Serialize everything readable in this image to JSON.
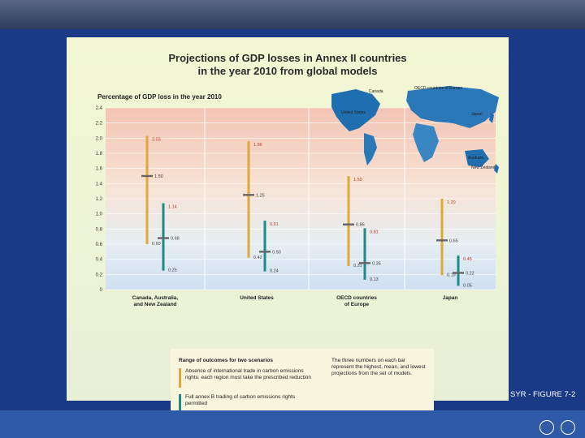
{
  "title_lines": [
    "Projections of GDP losses in Annex II countries",
    "in the year 2010 from global models"
  ],
  "footer": {
    "figure_label": "SYR - FIGURE 7-2"
  },
  "colors": {
    "scenario_no_trade": "#e0a83a",
    "scenario_full_trade": "#1d8a8a",
    "mean_marker": "#666666",
    "slide_bg": "#1a3a86"
  },
  "legend": {
    "title": "Range of outcomes for two scenarios",
    "item1": "Absence of international trade in carbon emissions rights: each region must take the prescribed reduction",
    "item2": "Full annex B trading of carbon emissions rights permitted",
    "note": "The three numbers on each bar represent the highest, mean, and lowest projections from the set of models."
  },
  "map_labels": [
    "Canada",
    "OECD countries of Europe",
    "United States",
    "Japan",
    "Australia",
    "New Zealand"
  ],
  "chart_data": {
    "type": "bar",
    "ylabel": "Percentage of GDP loss in the year 2010",
    "ylim": [
      0,
      2.4
    ],
    "yticks": [
      "2.4",
      "2.2",
      "2.0",
      "1.8",
      "1.6",
      "1.4",
      "1.2",
      "1.0",
      "0.8",
      "0.6",
      "0.4",
      "0.2",
      "0"
    ],
    "categories": [
      "Canada, Australia, and New Zealand",
      "United States",
      "OECD countries of Europe",
      "Japan"
    ],
    "series": [
      {
        "name": "Absence of international trade in carbon emissions rights: each region must take the prescribed reduction",
        "high": [
          2.03,
          1.96,
          1.5,
          1.2
        ],
        "mean": [
          1.5,
          1.25,
          0.86,
          0.65
        ],
        "low": [
          0.6,
          0.42,
          0.31,
          0.19
        ],
        "high_labels": [
          "2.03",
          "1.96",
          "1.50",
          "1.20"
        ],
        "mean_labels": [
          "1.50",
          "1.25",
          "0.86",
          "0.65"
        ],
        "low_labels": [
          "0.60",
          "0.42",
          "0.31",
          "0.19"
        ]
      },
      {
        "name": "Full annex B trading of carbon emissions rights permitted",
        "high": [
          1.14,
          0.91,
          0.81,
          0.45
        ],
        "mean": [
          0.68,
          0.5,
          0.35,
          0.22
        ],
        "low": [
          0.25,
          0.24,
          0.13,
          0.05
        ],
        "high_labels": [
          "1.14",
          "0.91",
          "0.81",
          "0.45"
        ],
        "mean_labels": [
          "0.68",
          "0.50",
          "0.35",
          "0.22"
        ],
        "low_labels": [
          "0.25",
          "0.24",
          "0.13",
          "0.05"
        ]
      }
    ]
  }
}
